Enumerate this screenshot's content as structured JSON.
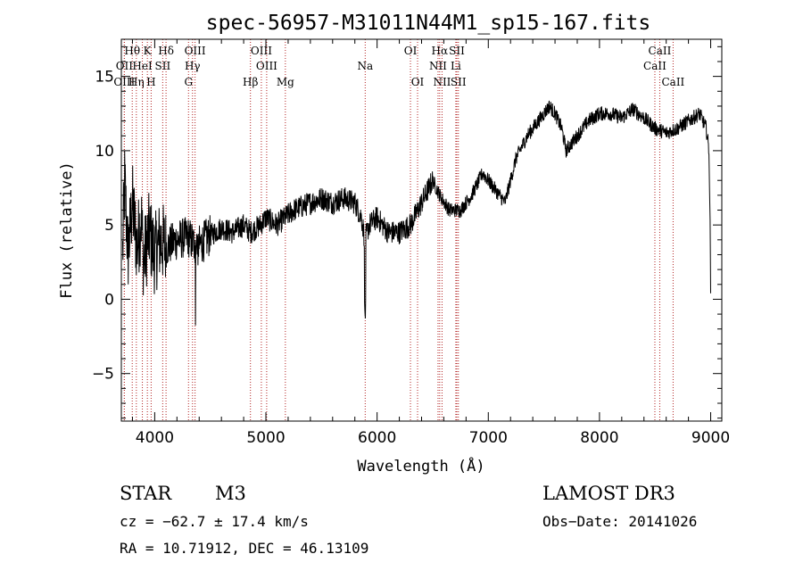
{
  "chart_data": {
    "type": "line",
    "title": "spec-56957-M31011N44M1_sp15-167.fits",
    "xlabel": "Wavelength (Å)",
    "ylabel": "Flux (relative)",
    "xlim": [
      3700,
      9100
    ],
    "ylim": [
      -8.2,
      17.5
    ],
    "x_ticks": [
      4000,
      5000,
      6000,
      7000,
      8000,
      9000
    ],
    "y_ticks": [
      -5,
      0,
      5,
      10,
      15
    ],
    "x_tick_labels": [
      "4000",
      "5000",
      "6000",
      "7000",
      "8000",
      "9000"
    ],
    "y_tick_labels": [
      "−5",
      "0",
      "5",
      "10",
      "15"
    ],
    "spectrum_anchor_points": [
      [
        3710,
        2.5
      ],
      [
        3730,
        8.0
      ],
      [
        3760,
        3.0
      ],
      [
        3800,
        6.5
      ],
      [
        3840,
        3.5
      ],
      [
        3880,
        5.5
      ],
      [
        3900,
        2.5
      ],
      [
        3950,
        4.5
      ],
      [
        4000,
        3.0
      ],
      [
        4050,
        4.0
      ],
      [
        4100,
        3.5
      ],
      [
        4200,
        4.0
      ],
      [
        4300,
        4.2
      ],
      [
        4380,
        3.5
      ],
      [
        4500,
        4.3
      ],
      [
        4600,
        4.8
      ],
      [
        4700,
        4.5
      ],
      [
        4800,
        5.0
      ],
      [
        4861,
        4.5
      ],
      [
        4950,
        5.0
      ],
      [
        5000,
        5.5
      ],
      [
        5100,
        5.0
      ],
      [
        5172,
        5.5
      ],
      [
        5250,
        6.0
      ],
      [
        5400,
        6.5
      ],
      [
        5500,
        6.8
      ],
      [
        5600,
        6.5
      ],
      [
        5700,
        6.8
      ],
      [
        5800,
        6.5
      ],
      [
        5860,
        5.5
      ],
      [
        5890,
        4.0
      ],
      [
        5930,
        5.0
      ],
      [
        6000,
        5.5
      ],
      [
        6100,
        4.5
      ],
      [
        6200,
        4.5
      ],
      [
        6300,
        5.0
      ],
      [
        6400,
        6.5
      ],
      [
        6500,
        8.0
      ],
      [
        6563,
        7.0
      ],
      [
        6650,
        6.0
      ],
      [
        6750,
        6.0
      ],
      [
        6850,
        7.0
      ],
      [
        6950,
        8.5
      ],
      [
        7050,
        7.5
      ],
      [
        7150,
        6.5
      ],
      [
        7250,
        9.5
      ],
      [
        7350,
        11.0
      ],
      [
        7450,
        12.0
      ],
      [
        7550,
        13.0
      ],
      [
        7600,
        12.5
      ],
      [
        7660,
        11.5
      ],
      [
        7700,
        10.0
      ],
      [
        7800,
        11.0
      ],
      [
        7900,
        12.0
      ],
      [
        8000,
        12.5
      ],
      [
        8100,
        12.5
      ],
      [
        8200,
        12.2
      ],
      [
        8300,
        12.8
      ],
      [
        8400,
        12.2
      ],
      [
        8500,
        11.5
      ],
      [
        8600,
        11.2
      ],
      [
        8700,
        11.5
      ],
      [
        8800,
        12.0
      ],
      [
        8900,
        12.5
      ],
      [
        8960,
        11.5
      ],
      [
        8985,
        10.0
      ],
      [
        8995,
        5.0
      ],
      [
        9000,
        0.0
      ]
    ],
    "spectral_lines": [
      {
        "name": "Hθ",
        "wavelength": 3798,
        "row": 0
      },
      {
        "name": "K",
        "wavelength": 3934,
        "row": 0
      },
      {
        "name": "Hδ",
        "wavelength": 4102,
        "row": 0
      },
      {
        "name": "OIII",
        "wavelength": 4363,
        "row": 0
      },
      {
        "name": "OIII",
        "wavelength": 4959,
        "row": 0
      },
      {
        "name": "OI",
        "wavelength": 6300,
        "row": 0
      },
      {
        "name": "Hα",
        "wavelength": 6563,
        "row": 0
      },
      {
        "name": "SII",
        "wavelength": 6717,
        "row": 0
      },
      {
        "name": "CaII",
        "wavelength": 8542,
        "row": 0
      },
      {
        "name": "OII",
        "wavelength": 3727,
        "row": 1
      },
      {
        "name": "HeI",
        "wavelength": 3889,
        "row": 1
      },
      {
        "name": "SII",
        "wavelength": 4072,
        "row": 1
      },
      {
        "name": "Hγ",
        "wavelength": 4340,
        "row": 1
      },
      {
        "name": "OIII",
        "wavelength": 5007,
        "row": 1
      },
      {
        "name": "Na",
        "wavelength": 5893,
        "row": 1
      },
      {
        "name": "NII",
        "wavelength": 6548,
        "row": 1
      },
      {
        "name": "Li",
        "wavelength": 6708,
        "row": 1
      },
      {
        "name": "CaII",
        "wavelength": 8498,
        "row": 1
      },
      {
        "name": "OIII",
        "wavelength": 3727,
        "row": 2
      },
      {
        "name": "Hη",
        "wavelength": 3835,
        "row": 2
      },
      {
        "name": "H",
        "wavelength": 3968,
        "row": 2
      },
      {
        "name": "G",
        "wavelength": 4304,
        "row": 2
      },
      {
        "name": "Hβ",
        "wavelength": 4861,
        "row": 2
      },
      {
        "name": "Mg",
        "wavelength": 5175,
        "row": 2
      },
      {
        "name": "OI",
        "wavelength": 6364,
        "row": 2
      },
      {
        "name": "NII",
        "wavelength": 6584,
        "row": 2
      },
      {
        "name": "SII",
        "wavelength": 6731,
        "row": 2
      },
      {
        "name": "CaII",
        "wavelength": 8662,
        "row": 2
      }
    ],
    "grid": false,
    "line_marker_color": "#b22222"
  },
  "info": {
    "object_class": "STAR",
    "subclass": "M3",
    "survey": "LAMOST DR3",
    "redshift": "cz = −62.7 ± 17.4 km/s",
    "obs_date": "Obs−Date: 20141026",
    "coords": "RA =  10.71912, DEC =  46.13109"
  }
}
